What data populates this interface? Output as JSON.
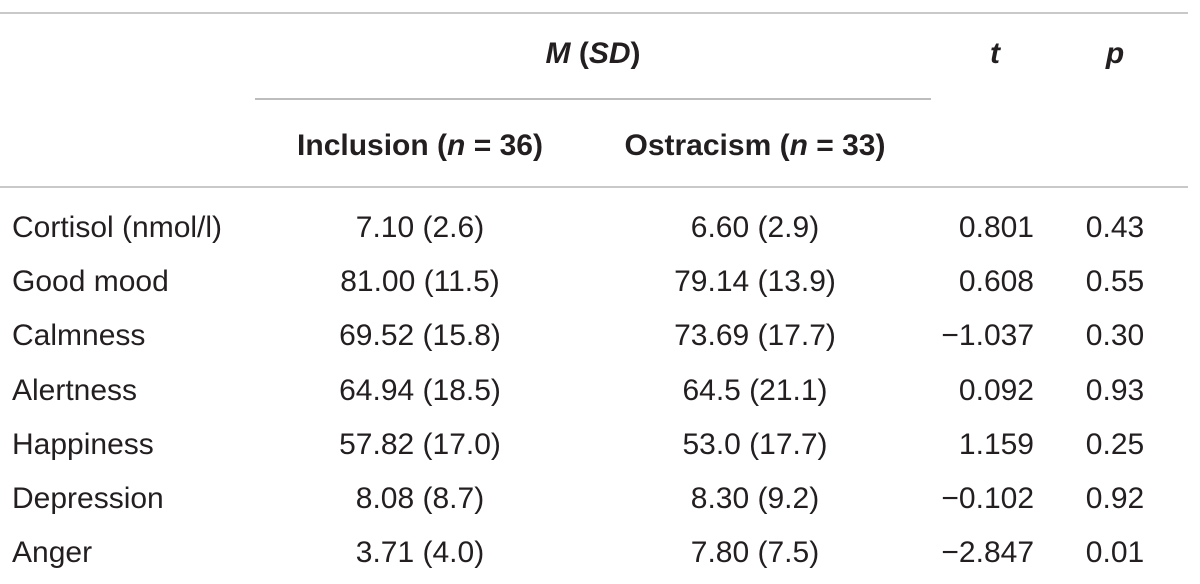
{
  "header": {
    "group_label_m": "M",
    "group_label_sd": "SD",
    "col_t": "t",
    "col_p": "p",
    "inclusion": {
      "label": "Inclusion",
      "n_symbol": "n",
      "n_value": "36"
    },
    "ostracism": {
      "label": "Ostracism",
      "n_symbol": "n",
      "n_value": "33"
    }
  },
  "rows": [
    {
      "label": "Cortisol (nmol/l)",
      "inclusion": "7.10 (2.6)",
      "ostracism": "6.60 (2.9)",
      "t": "0.801",
      "p": "0.43"
    },
    {
      "label": "Good mood",
      "inclusion": "81.00 (11.5)",
      "ostracism": "79.14 (13.9)",
      "t": "0.608",
      "p": "0.55"
    },
    {
      "label": "Calmness",
      "inclusion": "69.52 (15.8)",
      "ostracism": "73.69 (17.7)",
      "t": "−1.037",
      "p": "0.30"
    },
    {
      "label": "Alertness",
      "inclusion": "64.94 (18.5)",
      "ostracism": "64.5 (21.1)",
      "t": "0.092",
      "p": "0.93"
    },
    {
      "label": "Happiness",
      "inclusion": "57.82 (17.0)",
      "ostracism": "53.0 (17.7)",
      "t": "1.159",
      "p": "0.25"
    },
    {
      "label": "Depression",
      "inclusion": "8.08 (8.7)",
      "ostracism": "8.30 (9.2)",
      "t": "−0.102",
      "p": "0.92"
    },
    {
      "label": "Anger",
      "inclusion": "3.71 (4.0)",
      "ostracism": "7.80 (7.5)",
      "t": "−2.847",
      "p": "0.01"
    }
  ]
}
